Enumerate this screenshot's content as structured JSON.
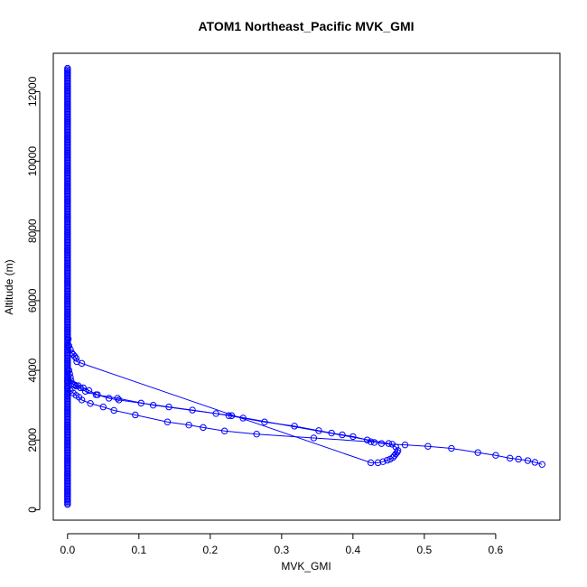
{
  "chart_data": {
    "type": "scatter",
    "title": "ATOM1 Northeast_Pacific MVK_GMI",
    "xlabel": "MVK_GMI",
    "ylabel": "Altitude (m)",
    "xlim": [
      -0.02,
      0.69
    ],
    "ylim": [
      -300,
      13100
    ],
    "xticks": [
      0.0,
      0.1,
      0.2,
      0.3,
      0.4,
      0.5,
      0.6
    ],
    "xtick_labels": [
      "0.0",
      "0.1",
      "0.2",
      "0.3",
      "0.4",
      "0.5",
      "0.6"
    ],
    "yticks": [
      0,
      2000,
      4000,
      6000,
      8000,
      10000,
      12000
    ],
    "ytick_labels": [
      "0",
      "2000",
      "4000",
      "6000",
      "8000",
      "10000",
      "12000"
    ],
    "colors": {
      "series": "#0000ff",
      "axis": "#000000"
    },
    "marker": "open-circle",
    "near_zero_column": {
      "x": 0.0,
      "y_min": 150,
      "y_max": 12700,
      "y_step": 40
    },
    "series": [
      {
        "points": [
          [
            0.001,
            4900
          ],
          [
            0.002,
            4700
          ],
          [
            0.004,
            4600
          ],
          [
            0.006,
            4500
          ],
          [
            0.008,
            4450
          ],
          [
            0.01,
            4400
          ],
          [
            0.012,
            4350
          ],
          [
            0.013,
            4250
          ],
          [
            0.02,
            4200
          ],
          [
            0.425,
            1350
          ],
          [
            0.435,
            1350
          ],
          [
            0.442,
            1380
          ],
          [
            0.448,
            1420
          ],
          [
            0.452,
            1450
          ],
          [
            0.456,
            1500
          ],
          [
            0.458,
            1550
          ],
          [
            0.46,
            1600
          ],
          [
            0.462,
            1650
          ],
          [
            0.463,
            1700
          ],
          [
            0.46,
            1800
          ],
          [
            0.45,
            1900
          ],
          [
            0.23,
            2700
          ],
          [
            0.12,
            3000
          ],
          [
            0.07,
            3200
          ],
          [
            0.04,
            3300
          ],
          [
            0.025,
            3400
          ],
          [
            0.018,
            3500
          ],
          [
            0.012,
            3550
          ],
          [
            0.008,
            3600
          ],
          [
            0.005,
            3700
          ],
          [
            0.004,
            3800
          ],
          [
            0.003,
            3900
          ],
          [
            0.002,
            4000
          ]
        ]
      },
      {
        "points": [
          [
            0.0,
            3500
          ],
          [
            0.004,
            3420
          ],
          [
            0.008,
            3350
          ],
          [
            0.012,
            3280
          ],
          [
            0.016,
            3230
          ],
          [
            0.02,
            3150
          ],
          [
            0.032,
            3050
          ],
          [
            0.05,
            2950
          ],
          [
            0.065,
            2850
          ],
          [
            0.095,
            2720
          ],
          [
            0.14,
            2520
          ],
          [
            0.17,
            2430
          ],
          [
            0.19,
            2360
          ],
          [
            0.22,
            2260
          ],
          [
            0.265,
            2170
          ],
          [
            0.345,
            2060
          ],
          [
            0.425,
            1950
          ],
          [
            0.44,
            1900
          ],
          [
            0.455,
            1880
          ],
          [
            0.473,
            1860
          ],
          [
            0.505,
            1820
          ],
          [
            0.538,
            1760
          ],
          [
            0.575,
            1640
          ],
          [
            0.6,
            1560
          ],
          [
            0.62,
            1480
          ],
          [
            0.632,
            1450
          ],
          [
            0.645,
            1410
          ],
          [
            0.655,
            1360
          ],
          [
            0.665,
            1300
          ]
        ]
      },
      {
        "points": [
          [
            0.0,
            3700
          ],
          [
            0.006,
            3620
          ],
          [
            0.01,
            3580
          ],
          [
            0.015,
            3560
          ],
          [
            0.022,
            3500
          ],
          [
            0.03,
            3420
          ],
          [
            0.042,
            3300
          ],
          [
            0.058,
            3200
          ],
          [
            0.072,
            3150
          ],
          [
            0.103,
            3060
          ],
          [
            0.142,
            2950
          ],
          [
            0.175,
            2860
          ],
          [
            0.208,
            2760
          ],
          [
            0.226,
            2700
          ],
          [
            0.246,
            2630
          ],
          [
            0.276,
            2520
          ],
          [
            0.318,
            2400
          ],
          [
            0.352,
            2270
          ],
          [
            0.37,
            2200
          ],
          [
            0.385,
            2150
          ],
          [
            0.4,
            2100
          ],
          [
            0.42,
            2000
          ],
          [
            0.43,
            1930
          ]
        ]
      }
    ],
    "grid": false
  }
}
